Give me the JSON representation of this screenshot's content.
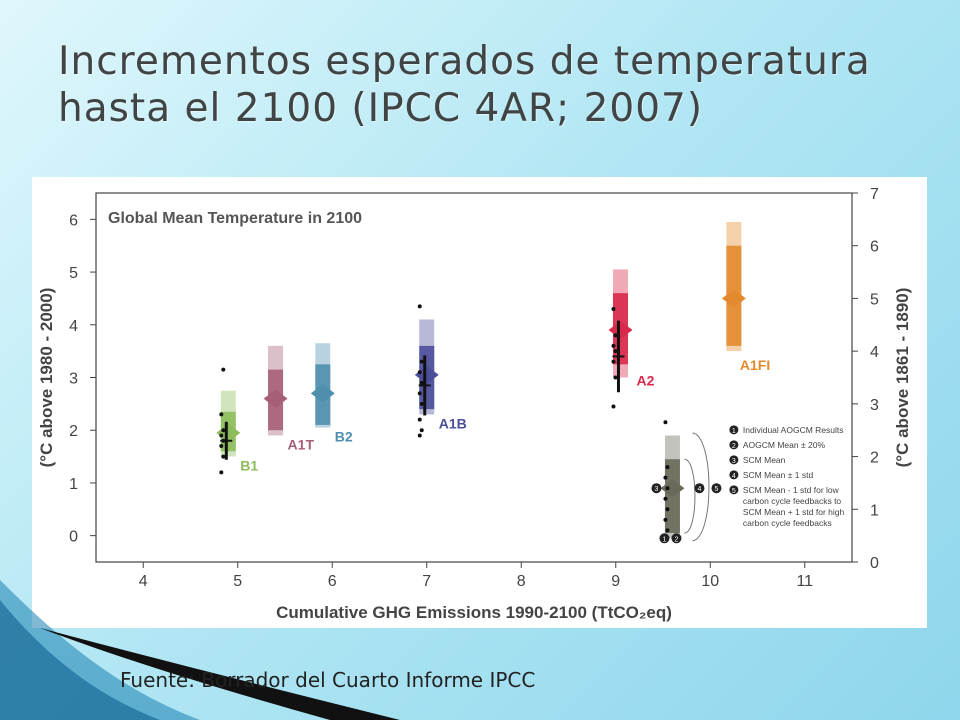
{
  "slide": {
    "title_line1": "Incrementos esperados de temperatura",
    "title_line2": "hasta el 2100 (IPCC 4AR; 2007)",
    "source": "Fuente: Borrador del Cuarto Informe IPCC"
  },
  "colors": {
    "B1": "#8dbd5a",
    "A1T": "#a65f77",
    "B2": "#4f8fae",
    "A1B": "#4b4f9b",
    "A2": "#d9294a",
    "A1FI": "#e38a2e",
    "SCM": "#6a6a5a"
  },
  "chart_data": {
    "type": "scatter",
    "title": "Global Mean Temperature in 2100",
    "xlabel": "Cumulative GHG Emissions 1990-2100 (TtCO₂eq)",
    "ylabel_left": "(°C above 1980 - 2000)",
    "ylabel_right": "(°C above 1861 - 1890)",
    "xlim": [
      3.5,
      11.5
    ],
    "ylim_left": [
      -0.5,
      6.5
    ],
    "ylim_right": [
      0,
      7
    ],
    "xticks": [
      4,
      5,
      6,
      7,
      8,
      9,
      10,
      11
    ],
    "yticks_left": [
      0,
      1,
      2,
      3,
      4,
      5,
      6
    ],
    "yticks_right": [
      0,
      1,
      2,
      3,
      4,
      5,
      6,
      7
    ],
    "grid": false,
    "scenarios": [
      {
        "name": "B1",
        "x": 4.9,
        "outer": [
          1.5,
          2.75
        ],
        "inner": [
          1.6,
          2.35
        ],
        "scm_mean": 1.95,
        "aogcm_mean": 1.8,
        "results": [
          1.2,
          1.5,
          1.7,
          1.8,
          1.9,
          2.0,
          2.3,
          3.15
        ]
      },
      {
        "name": "A1T",
        "x": 5.4,
        "outer": [
          1.9,
          3.6
        ],
        "inner": [
          2.0,
          3.15
        ],
        "scm_mean": 2.6
      },
      {
        "name": "B2",
        "x": 5.9,
        "outer": [
          2.05,
          3.65
        ],
        "inner": [
          2.1,
          3.25
        ],
        "scm_mean": 2.7
      },
      {
        "name": "A1B",
        "x": 7.0,
        "outer": [
          2.3,
          4.1
        ],
        "inner": [
          2.4,
          3.6
        ],
        "scm_mean": 3.05,
        "aogcm_mean": 2.85,
        "results": [
          1.9,
          2.0,
          2.2,
          2.5,
          2.7,
          2.9,
          3.1,
          3.3,
          4.35
        ]
      },
      {
        "name": "A2",
        "x": 9.05,
        "outer": [
          3.0,
          5.05
        ],
        "inner": [
          3.25,
          4.6
        ],
        "scm_mean": 3.9,
        "aogcm_mean": 3.4,
        "results": [
          2.45,
          3.0,
          3.3,
          3.5,
          3.6,
          3.8,
          4.3
        ]
      },
      {
        "name": "A1FI",
        "x": 10.25,
        "outer": [
          3.5,
          5.95
        ],
        "inner": [
          3.6,
          5.5
        ],
        "scm_mean": 4.5
      }
    ],
    "legend": {
      "placement": "bottom-right",
      "items": [
        {
          "num": "1",
          "text": "Individual AOGCM Results"
        },
        {
          "num": "2",
          "text": "AOGCM Mean ± 20%"
        },
        {
          "num": "3",
          "text": "SCM Mean"
        },
        {
          "num": "4",
          "text": "SCM Mean ± 1 std"
        },
        {
          "num": "5",
          "text": "SCM Mean - 1 std for low carbon cycle feedbacks to SCM Mean + 1 std for high carbon cycle feedbacks"
        }
      ],
      "example": {
        "x": 9.6,
        "outer": [
          -0.05,
          1.9
        ],
        "inner": [
          0.05,
          1.45
        ],
        "scm_mean": 0.9,
        "results": [
          -0.1,
          0.1,
          0.3,
          0.5,
          0.7,
          0.9,
          1.1,
          1.3,
          2.15
        ]
      }
    }
  }
}
